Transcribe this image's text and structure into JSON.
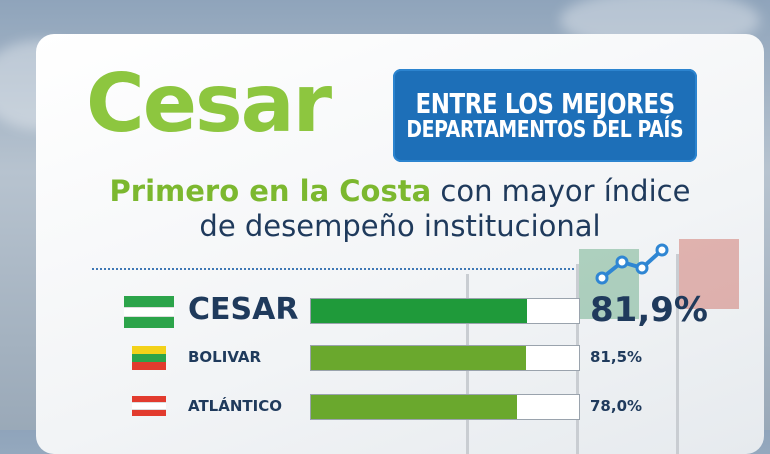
{
  "title": "Cesar",
  "badge": {
    "line1": "ENTRE LOS MEJORES",
    "line2": "DEPARTAMENTOS DEL PAÍS"
  },
  "subtitle": {
    "highlight": "Primero en la Costa",
    "rest_line1": " con mayor índice",
    "line2": "de desempeño institucional"
  },
  "icons": {
    "trend": "trend-line-chart-icon"
  },
  "colors": {
    "title_green": "#8dc63f",
    "badge_blue": "#1d6fb8",
    "bar_green_cesar": "#1f9a3a",
    "bar_green": "#6aa82d",
    "text_navy": "#1f3a5c"
  },
  "ranking": [
    {
      "name": "CESAR",
      "value_label": "81,9%",
      "value": 81.9,
      "flag": [
        "#2ca44a",
        "#ffffff",
        "#2ca44a"
      ]
    },
    {
      "name": "BOLIVAR",
      "value_label": "81,5%",
      "value": 81.5,
      "flag": [
        "#f3d21a",
        "#2ca44a",
        "#e23b2e"
      ]
    },
    {
      "name": "ATLÁNTICO",
      "value_label": "78,0%",
      "value": 78.0,
      "flag": [
        "#e23b2e",
        "#ffffff",
        "#e23b2e"
      ]
    }
  ]
}
